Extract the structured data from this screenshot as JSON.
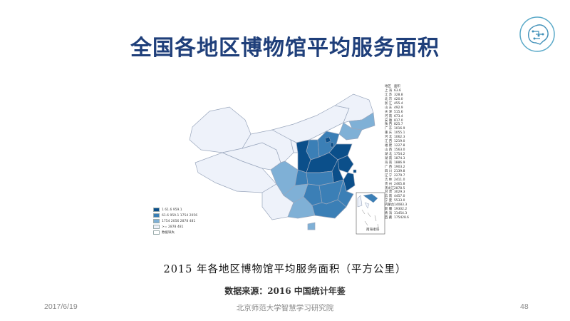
{
  "slide": {
    "title": "全国各地区博物馆平均服务面积",
    "caption": "2015 年各地区博物馆平均服务面积（平方公里）",
    "source": "数据来源：2016 中国统计年鉴",
    "footer_date": "2017/6/19",
    "footer_org": "北京师范大学智慧学习研究院",
    "page_number": "48"
  },
  "map": {
    "inset_label": "南海诸岛",
    "colors": {
      "c1": "#0b4f8a",
      "c2": "#3b7fb6",
      "c3": "#7fb0d6",
      "c4": "#eef2fa",
      "border": "#9aa7bd"
    },
    "legend": [
      {
        "label": "1  61.6  959.1",
        "color": "#0b4f8a"
      },
      {
        "label": "61.6  959.1  1754  2056",
        "color": "#3b7fb6"
      },
      {
        "label": "1754  2056  2878  481",
        "color": "#7fb0d6"
      },
      {
        "label": ">=  2878  481",
        "color": "#eef2fa"
      },
      {
        "label": "数据缺失",
        "color": "#ffffff"
      }
    ],
    "table_header": [
      "地区",
      "面积"
    ],
    "table": [
      [
        "上 海",
        "63.6"
      ],
      [
        "江 苏",
        "328.8"
      ],
      [
        "北 京",
        "420.0"
      ],
      [
        "浙 江",
        "455.4"
      ],
      [
        "山 东",
        "492.9"
      ],
      [
        "天 津",
        "515.6"
      ],
      [
        "河 南",
        "673.4"
      ],
      [
        "安 徽",
        "817.0"
      ],
      [
        "陕 西",
        "825.7"
      ],
      [
        "广 东",
        "1016.9"
      ],
      [
        "重 庆",
        "1055.1"
      ],
      [
        "河 北",
        "1062.3"
      ],
      [
        "江 西",
        "1219.0"
      ],
      [
        "福 建",
        "1227.8"
      ],
      [
        "山 西",
        "1563.0"
      ],
      [
        "湖 北",
        "1754.2"
      ],
      [
        "湖 南",
        "1874.3"
      ],
      [
        "海 南",
        "1886.9"
      ],
      [
        "广 西",
        "1903.2"
      ],
      [
        "四 川",
        "2139.8"
      ],
      [
        "辽 宁",
        "2279.7"
      ],
      [
        "吉 林",
        "2411.0"
      ],
      [
        "贵 州",
        "2465.8"
      ],
      [
        "黑龙江",
        "2878.5"
      ],
      [
        "甘 肃",
        "3029.3"
      ],
      [
        "云 南",
        "4457.0"
      ],
      [
        "宁 夏",
        "5533.0"
      ],
      [
        "内蒙古",
        "14083.3"
      ],
      [
        "新 疆",
        "19302.2"
      ],
      [
        "青 海",
        "31454.3"
      ],
      [
        "西 藏",
        "175428.6"
      ]
    ]
  }
}
